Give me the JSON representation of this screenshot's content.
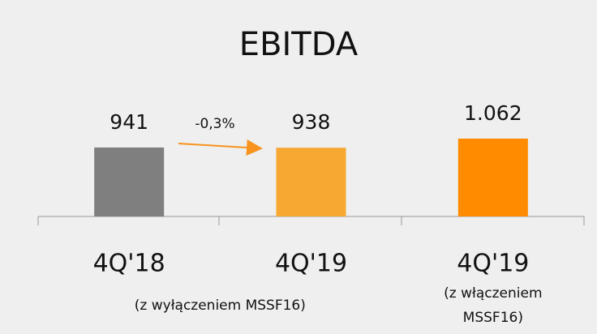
{
  "chart_data": {
    "type": "bar",
    "title": "EBITDA",
    "categories": [
      "4Q'18",
      "4Q'19",
      "4Q'19"
    ],
    "values": [
      941,
      938,
      1062
    ],
    "value_labels": [
      "941",
      "938",
      "1.062"
    ],
    "colors": [
      "#7f7f7f",
      "#f7a833",
      "#ff8c00"
    ],
    "annotation": "-0,3%",
    "category_notes": [
      "(z wyłączeniem MSSF16)",
      "(z włączeniem MSSF16)"
    ]
  }
}
